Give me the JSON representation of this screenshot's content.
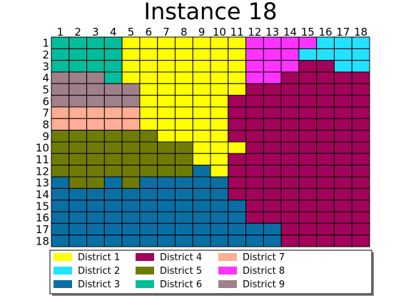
{
  "chart_data": {
    "type": "heatmap",
    "title": "Instance 18",
    "xlabel": "",
    "ylabel": "",
    "x_ticks": [
      "1",
      "2",
      "3",
      "4",
      "5",
      "6",
      "7",
      "8",
      "9",
      "10",
      "11",
      "12",
      "13",
      "14",
      "15",
      "16",
      "17",
      "18"
    ],
    "y_ticks": [
      "1",
      "2",
      "3",
      "4",
      "5",
      "6",
      "7",
      "8",
      "9",
      "10",
      "11",
      "12",
      "13",
      "14",
      "15",
      "16",
      "17",
      "18"
    ],
    "grid": true,
    "legend_placement": "bottom",
    "districts": [
      {
        "id": 1,
        "name": "District 1",
        "color": "#FFFF00"
      },
      {
        "id": 2,
        "name": "District 2",
        "color": "#22E3FF"
      },
      {
        "id": 3,
        "name": "District 3",
        "color": "#0B6FA4"
      },
      {
        "id": 4,
        "name": "District 4",
        "color": "#A1045A"
      },
      {
        "id": 5,
        "name": "District 5",
        "color": "#6F7B05"
      },
      {
        "id": 6,
        "name": "District 6",
        "color": "#03BD9C"
      },
      {
        "id": 7,
        "name": "District 7",
        "color": "#FFAE95"
      },
      {
        "id": 8,
        "name": "District 8",
        "color": "#FF33FF"
      },
      {
        "id": 9,
        "name": "District 9",
        "color": "#A0808A"
      }
    ],
    "grid_values": [
      [
        6,
        6,
        6,
        6,
        1,
        1,
        1,
        1,
        1,
        1,
        1,
        8,
        8,
        8,
        8,
        2,
        2,
        2
      ],
      [
        6,
        6,
        6,
        6,
        1,
        1,
        1,
        1,
        1,
        1,
        1,
        8,
        8,
        8,
        2,
        2,
        2,
        2
      ],
      [
        6,
        6,
        6,
        6,
        1,
        1,
        1,
        1,
        1,
        1,
        1,
        8,
        8,
        8,
        4,
        4,
        2,
        2
      ],
      [
        9,
        9,
        9,
        6,
        1,
        1,
        1,
        1,
        1,
        1,
        1,
        8,
        8,
        4,
        4,
        4,
        4,
        4
      ],
      [
        9,
        9,
        9,
        9,
        9,
        1,
        1,
        1,
        1,
        1,
        1,
        4,
        4,
        4,
        4,
        4,
        4,
        4
      ],
      [
        9,
        9,
        9,
        9,
        9,
        1,
        1,
        1,
        1,
        1,
        4,
        4,
        4,
        4,
        4,
        4,
        4,
        4
      ],
      [
        7,
        7,
        7,
        7,
        7,
        1,
        1,
        1,
        1,
        1,
        4,
        4,
        4,
        4,
        4,
        4,
        4,
        4
      ],
      [
        7,
        7,
        7,
        7,
        7,
        1,
        1,
        1,
        1,
        1,
        4,
        4,
        4,
        4,
        4,
        4,
        4,
        4
      ],
      [
        5,
        5,
        5,
        5,
        5,
        5,
        1,
        1,
        1,
        1,
        4,
        4,
        4,
        4,
        4,
        4,
        4,
        4
      ],
      [
        5,
        5,
        5,
        5,
        5,
        5,
        5,
        5,
        1,
        1,
        1,
        4,
        4,
        4,
        4,
        4,
        4,
        4
      ],
      [
        5,
        5,
        5,
        5,
        5,
        5,
        5,
        5,
        1,
        1,
        4,
        4,
        4,
        4,
        4,
        4,
        4,
        4
      ],
      [
        5,
        5,
        5,
        5,
        5,
        5,
        5,
        5,
        3,
        1,
        4,
        4,
        4,
        4,
        4,
        4,
        4,
        4
      ],
      [
        3,
        5,
        5,
        3,
        5,
        3,
        3,
        3,
        3,
        3,
        4,
        4,
        4,
        4,
        4,
        4,
        4,
        4
      ],
      [
        3,
        3,
        3,
        3,
        3,
        3,
        3,
        3,
        3,
        3,
        4,
        4,
        4,
        4,
        4,
        4,
        4,
        4
      ],
      [
        3,
        3,
        3,
        3,
        3,
        3,
        3,
        3,
        3,
        3,
        3,
        4,
        4,
        4,
        4,
        4,
        4,
        4
      ],
      [
        3,
        3,
        3,
        3,
        3,
        3,
        3,
        3,
        3,
        3,
        3,
        4,
        4,
        4,
        4,
        4,
        4,
        4
      ],
      [
        3,
        3,
        3,
        3,
        3,
        3,
        3,
        3,
        3,
        3,
        3,
        3,
        3,
        4,
        4,
        4,
        4,
        4
      ],
      [
        3,
        3,
        3,
        3,
        3,
        3,
        3,
        3,
        3,
        3,
        3,
        3,
        3,
        4,
        4,
        4,
        4,
        4
      ]
    ]
  }
}
